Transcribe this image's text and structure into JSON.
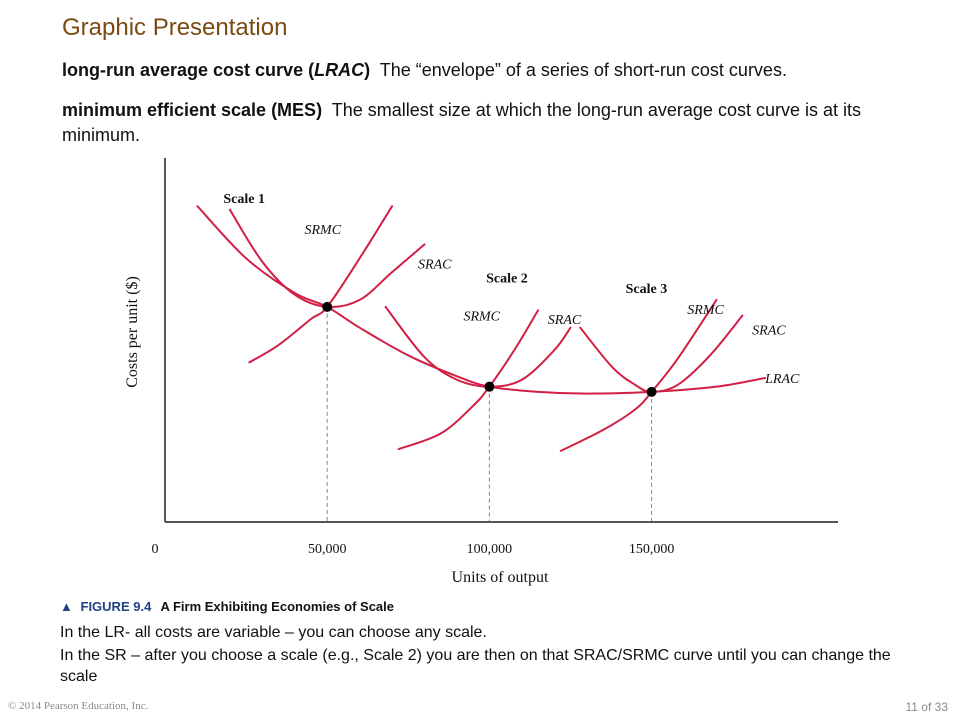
{
  "slide": {
    "title": "Graphic Presentation",
    "def1": {
      "term": "long-run average cost curve (",
      "abbr": "LRAC",
      "term_end": ")",
      "text": "The “envelope” of a series of short-run cost curves."
    },
    "def2": {
      "term": "minimum efficient scale (MES)",
      "text": "The smallest size at which the long-run average cost curve is at its minimum."
    },
    "figure_label": "FIGURE 9.4",
    "figure_title": "A Firm Exhibiting Economies of Scale",
    "note1": "In the LR- all costs are variable – you can choose any scale.",
    "note2": "In the SR – after you choose a scale (e.g., Scale 2) you are then on that SRAC/SRMC curve until you can change the scale",
    "copyright": "© 2014 Pearson Education, Inc.",
    "page": "11 of 33"
  },
  "chart_data": {
    "type": "line",
    "title": "",
    "xlabel": "Units of output",
    "ylabel": "Costs per unit ($)",
    "x_ticks": [
      {
        "value": 0,
        "label": "0"
      },
      {
        "value": 50000,
        "label": "50,000"
      },
      {
        "value": 100000,
        "label": "100,000"
      },
      {
        "value": 150000,
        "label": "150,000"
      }
    ],
    "xlim": [
      0,
      205000
    ],
    "ylim": [
      0,
      10
    ],
    "y_ticks_shown": false,
    "colors": {
      "curve": "#d21f45",
      "axis": "#555555",
      "guide": "#888888",
      "point": "#000000"
    },
    "scale_labels": [
      {
        "text": "Scale 1",
        "x": 18000,
        "y": 9.2
      },
      {
        "text": "Scale 2",
        "x": 99000,
        "y": 6.9
      },
      {
        "text": "Scale 3",
        "x": 142000,
        "y": 6.6
      }
    ],
    "curve_labels": [
      {
        "text": "SRMC",
        "x": 43000,
        "y": 8.3
      },
      {
        "text": "SRAC",
        "x": 78000,
        "y": 7.3
      },
      {
        "text": "SRMC",
        "x": 92000,
        "y": 5.8
      },
      {
        "text": "SRAC",
        "x": 118000,
        "y": 5.7
      },
      {
        "text": "SRMC",
        "x": 161000,
        "y": 6.0
      },
      {
        "text": "SRAC",
        "x": 181000,
        "y": 5.4
      },
      {
        "text": "LRAC",
        "x": 185000,
        "y": 4.0
      }
    ],
    "points": [
      {
        "x": 50000,
        "y": 6.2
      },
      {
        "x": 100000,
        "y": 3.9
      },
      {
        "x": 150000,
        "y": 3.75
      }
    ],
    "series": [
      {
        "name": "LRAC",
        "x": [
          10000,
          25000,
          40000,
          50000,
          60000,
          75000,
          90000,
          100000,
          115000,
          130000,
          150000,
          170000,
          185000
        ],
        "y": [
          9.1,
          7.6,
          6.6,
          6.2,
          5.6,
          4.8,
          4.2,
          3.9,
          3.75,
          3.7,
          3.75,
          3.9,
          4.15
        ]
      },
      {
        "name": "SRAC",
        "x": [
          20000,
          30000,
          40000,
          50000,
          60000,
          70000,
          80000
        ],
        "y": [
          9.0,
          7.5,
          6.55,
          6.2,
          6.4,
          7.2,
          8.0
        ]
      },
      {
        "name": "SRMC",
        "x": [
          26000,
          35000,
          45000,
          50000,
          60000,
          70000
        ],
        "y": [
          4.6,
          5.1,
          5.85,
          6.2,
          7.6,
          9.1
        ]
      },
      {
        "name": "SRAC",
        "x": [
          68000,
          80000,
          90000,
          100000,
          110000,
          120000,
          125000
        ],
        "y": [
          6.2,
          4.75,
          4.1,
          3.9,
          4.1,
          4.95,
          5.6
        ]
      },
      {
        "name": "SRMC",
        "x": [
          72000,
          85000,
          95000,
          100000,
          108000,
          115000
        ],
        "y": [
          2.1,
          2.55,
          3.35,
          3.9,
          5.0,
          6.1
        ]
      },
      {
        "name": "SRAC",
        "x": [
          128000,
          138000,
          145000,
          150000,
          158000,
          168000,
          178000
        ],
        "y": [
          5.6,
          4.45,
          3.95,
          3.75,
          3.95,
          4.8,
          5.95
        ]
      },
      {
        "name": "SRMC",
        "x": [
          122000,
          135000,
          145000,
          150000,
          158000,
          170000
        ],
        "y": [
          2.05,
          2.65,
          3.25,
          3.75,
          4.7,
          6.4
        ]
      }
    ]
  }
}
